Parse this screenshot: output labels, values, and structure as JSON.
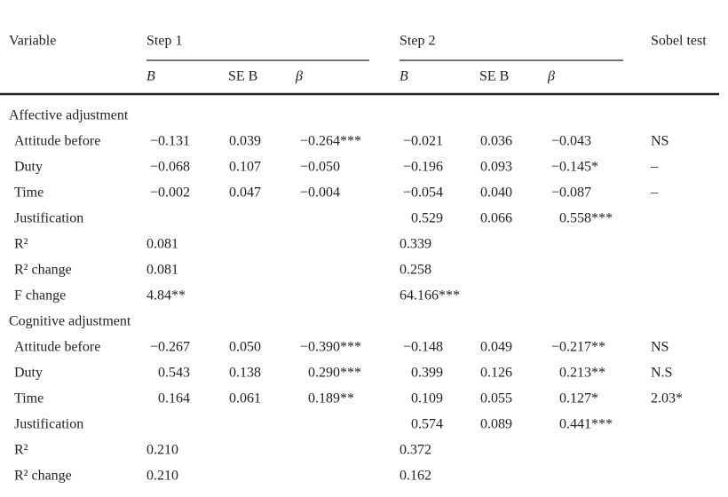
{
  "table": {
    "header": [
      "Variable",
      "Step 1",
      "Step 2",
      "Sobel test"
    ],
    "subheader": [
      "B",
      "SE B",
      "β",
      "B",
      "SE B",
      "β"
    ],
    "sections": [
      {
        "title": "Affective adjustment",
        "rows": [
          [
            "Attitude before",
            "−0.131",
            "0.039",
            "−0.264***",
            "−0.021",
            "0.036",
            "−0.043",
            "NS"
          ],
          [
            "Duty",
            "−0.068",
            "0.107",
            "−0.050",
            "−0.196",
            "0.093",
            "−0.145*",
            "–"
          ],
          [
            "Time",
            "−0.002",
            "0.047",
            "−0.004",
            "−0.054",
            "0.040",
            "−0.087",
            "–"
          ],
          [
            "Justification",
            null,
            null,
            null,
            "0.529",
            "0.066",
            "0.558***",
            null
          ],
          [
            "R²",
            "0.081",
            null,
            null,
            "0.339",
            null,
            null,
            null
          ],
          [
            "R² change",
            "0.081",
            null,
            null,
            "0.258",
            null,
            null,
            null
          ],
          [
            "F change",
            "4.84**",
            null,
            null,
            "64.166***",
            null,
            null,
            null
          ]
        ]
      },
      {
        "title": "Cognitive adjustment",
        "rows": [
          [
            "Attitude before",
            "−0.267",
            "0.050",
            "−0.390***",
            "−0.148",
            "0.049",
            "−0.217**",
            "NS"
          ],
          [
            "Duty",
            "0.543",
            "0.138",
            "0.290***",
            "0.399",
            "0.126",
            "0.213**",
            "N.S"
          ],
          [
            "Time",
            "0.164",
            "0.061",
            "0.189**",
            "0.109",
            "0.055",
            "0.127*",
            "2.03*"
          ],
          [
            "Justification",
            null,
            null,
            null,
            "0.574",
            "0.089",
            "0.441***",
            null
          ],
          [
            "R²",
            "0.210",
            null,
            null,
            "0.372",
            null,
            null,
            null
          ],
          [
            "R² change",
            "0.210",
            null,
            null,
            "0.162",
            null,
            null,
            null
          ]
        ]
      }
    ]
  }
}
